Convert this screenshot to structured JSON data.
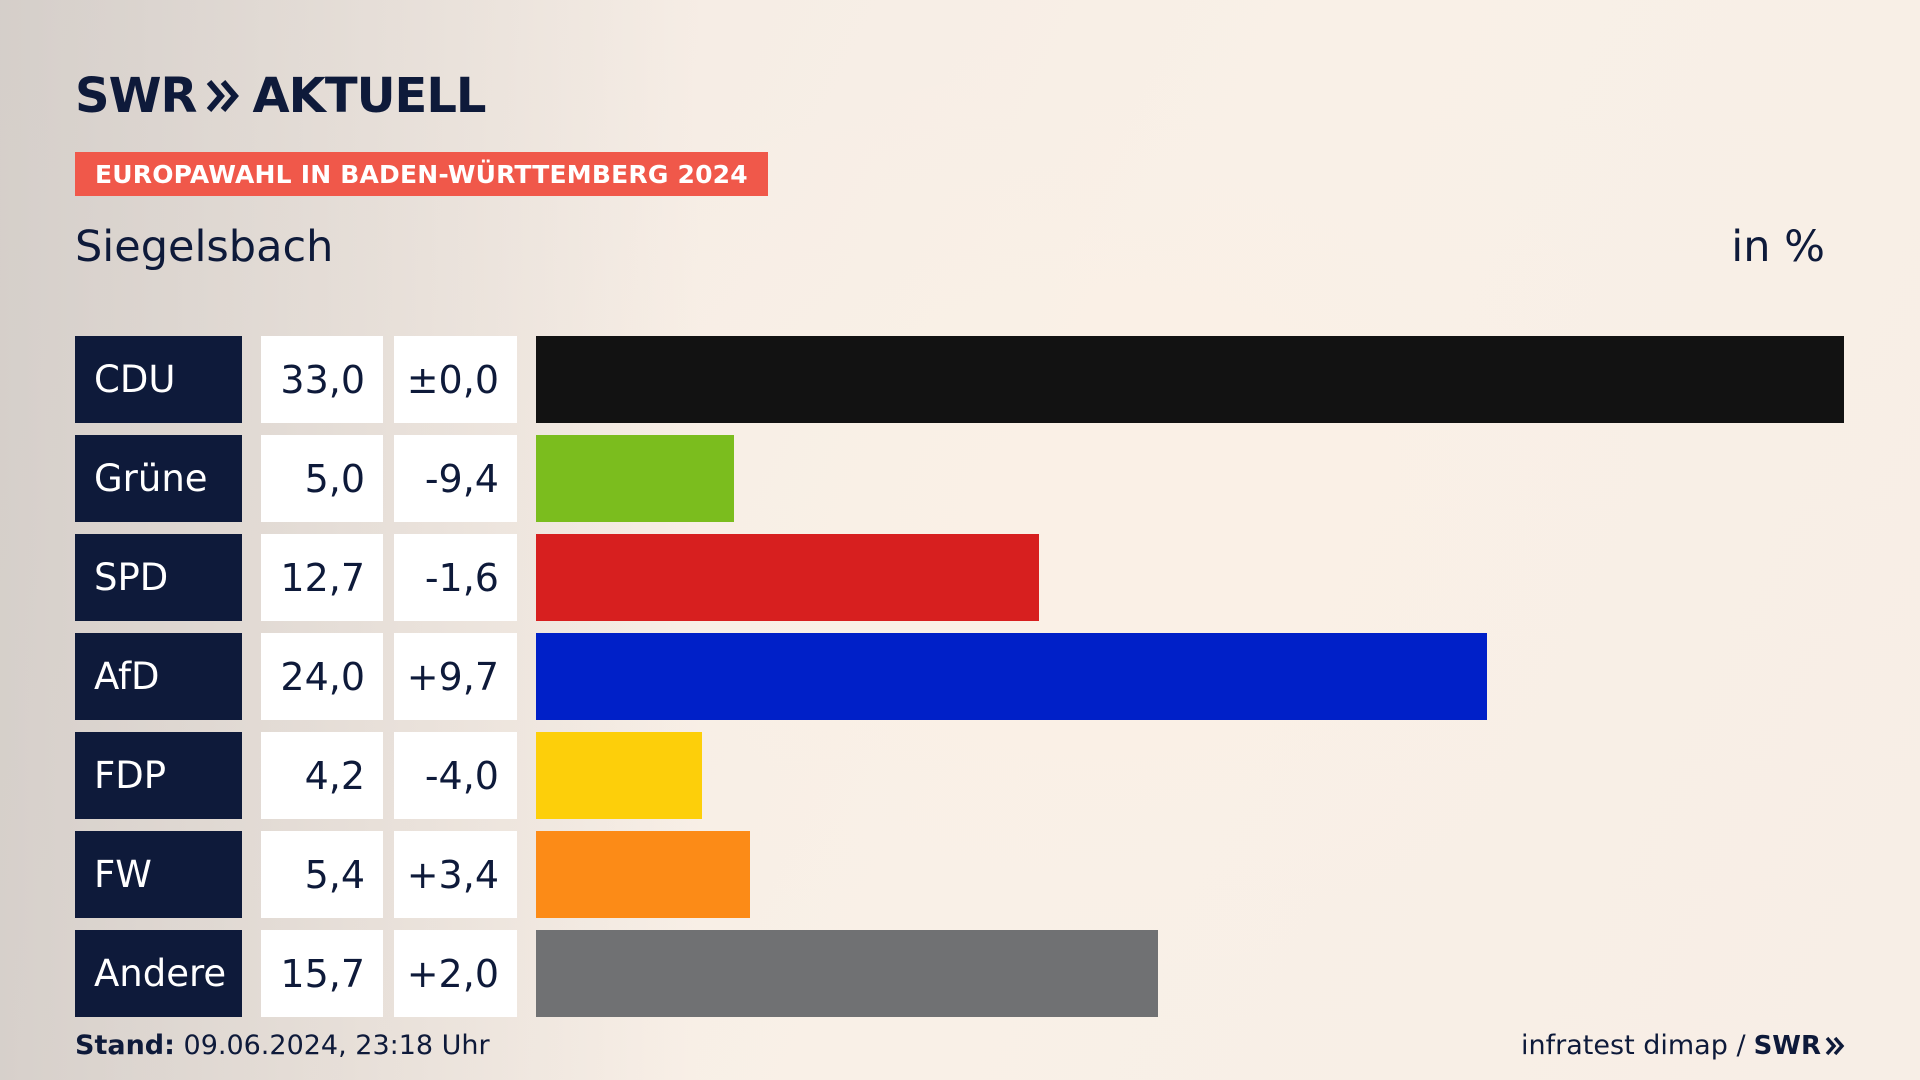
{
  "header": {
    "logo_text": "SWR",
    "logo_suffix": "AKTUELL",
    "badge": "EUROPAWAHL IN BADEN-WÜRTTEMBERG 2024",
    "location": "Siegelsbach",
    "unit": "in %"
  },
  "footer": {
    "stand_label": "Stand:",
    "stand_value": "09.06.2024, 23:18 Uhr",
    "source": "infratest dimap /",
    "source_logo": "SWR"
  },
  "chart_data": {
    "type": "bar",
    "orientation": "horizontal",
    "categories": [
      "CDU",
      "Grüne",
      "SPD",
      "AfD",
      "FDP",
      "FW",
      "Andere"
    ],
    "values": [
      33.0,
      5.0,
      12.7,
      24.0,
      4.2,
      5.4,
      15.7
    ],
    "value_labels": [
      "33,0",
      "5,0",
      "12,7",
      "24,0",
      "4,2",
      "5,4",
      "15,7"
    ],
    "changes": [
      0.0,
      -9.4,
      -1.6,
      9.7,
      -4.0,
      3.4,
      2.0
    ],
    "change_labels": [
      "±0,0",
      "-9,4",
      "-1,6",
      "+9,7",
      "-4,0",
      "+3,4",
      "+2,0"
    ],
    "colors": [
      "#121212",
      "#7bbd1e",
      "#d71f1f",
      "#0020c8",
      "#fdcf0a",
      "#fc8b17",
      "#707173"
    ],
    "xlim": [
      0,
      33.0
    ]
  }
}
